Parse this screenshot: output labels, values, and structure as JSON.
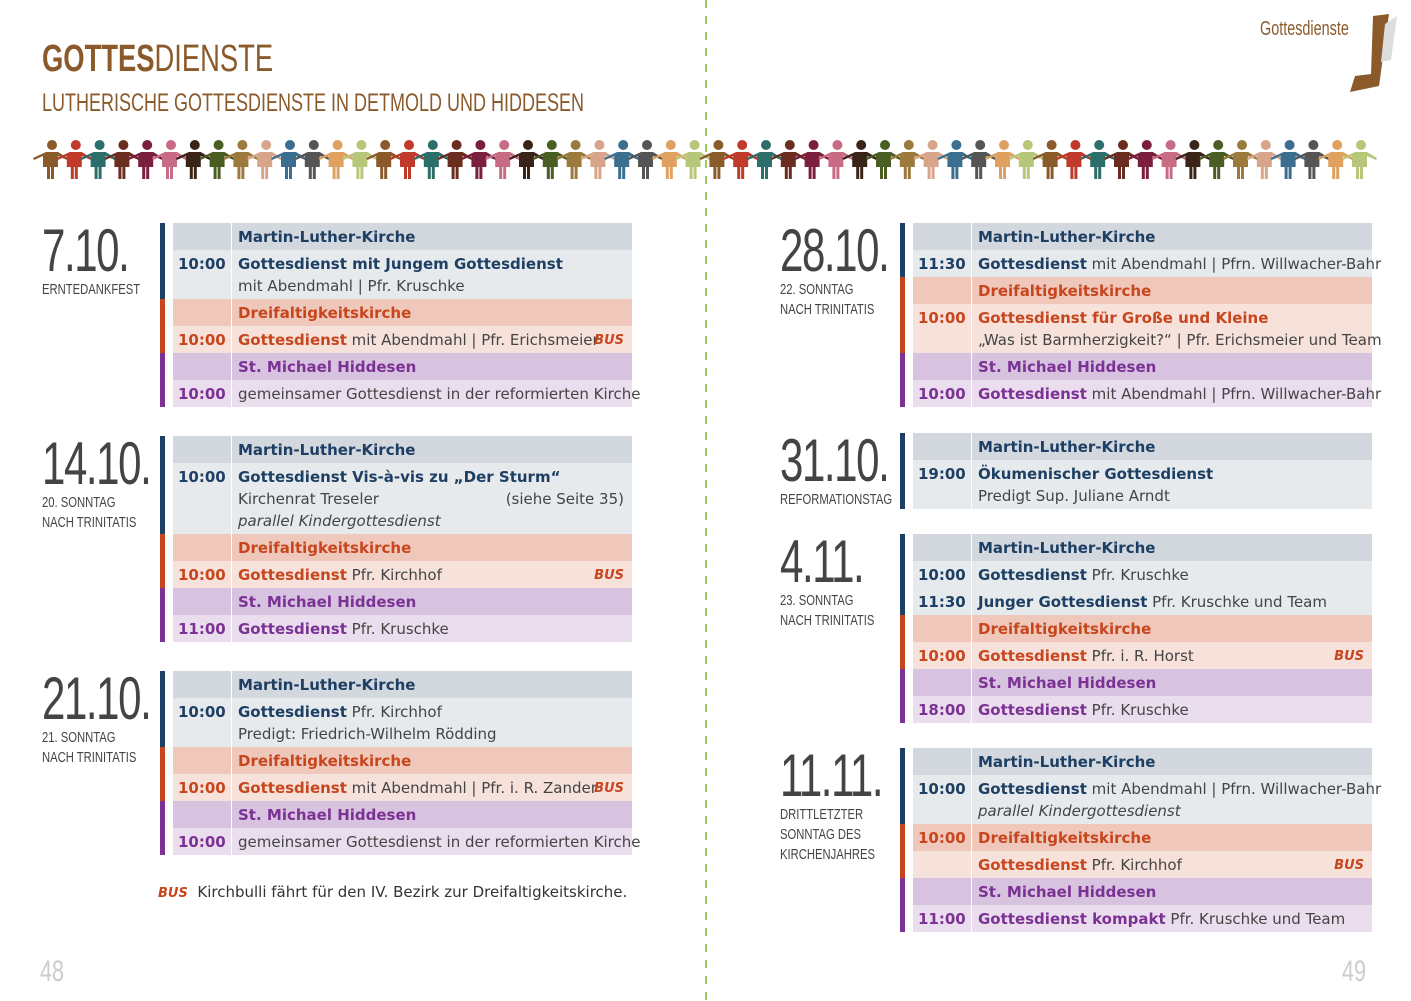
{
  "header": {
    "title_bold": "GOTTES",
    "title_light": "DIENSTE",
    "subtitle": "LUTHERISCHE GOTTESDIENSTE IN DETMOLD UND HIDDESEN",
    "section_tab": "Gottesdienste"
  },
  "days": [
    {
      "date": "7.10.",
      "label": [
        "ERNTEDANKFEST"
      ],
      "churches": [
        {
          "name": "Martin-Luther-Kirche",
          "color": "#1d3f63",
          "services": [
            {
              "time": "10:00",
              "title": "Gottesdienst mit Jungem Gottesdienst",
              "lines": [
                "mit Abendmahl | Pfr. Kruschke"
              ]
            }
          ]
        },
        {
          "name": "Dreifaltigkeitskirche",
          "color": "#c8461d",
          "services": [
            {
              "time": "10:00",
              "title": "Gottesdienst",
              "text": "mit Abendmahl | Pfr. Erichsmeier",
              "bus": "BUS"
            }
          ]
        },
        {
          "name": "St. Michael Hiddesen",
          "color": "#7b3294",
          "services": [
            {
              "time": "10:00",
              "text": "gemeinsamer Gottesdienst in der reformierten Kirche"
            }
          ]
        }
      ]
    },
    {
      "date": "14.10.",
      "label": [
        "20. SONNTAG",
        "NACH TRINITATIS"
      ],
      "churches": [
        {
          "name": "Martin-Luther-Kirche",
          "color": "#1d3f63",
          "services": [
            {
              "time": "10:00",
              "title": "Gottesdienst Vis-à-vis zu „Der Sturm“",
              "lines": [
                "Kirchenrat Treseler"
              ],
              "note": "(siehe Seite 35)",
              "italic": "parallel Kindergottesdienst"
            }
          ]
        },
        {
          "name": "Dreifaltigkeitskirche",
          "color": "#c8461d",
          "services": [
            {
              "time": "10:00",
              "title": "Gottesdienst",
              "text": "Pfr. Kirchhof",
              "bus": "BUS"
            }
          ]
        },
        {
          "name": "St. Michael Hiddesen",
          "color": "#7b3294",
          "services": [
            {
              "time": "11:00",
              "title": "Gottesdienst",
              "text": "Pfr. Kruschke"
            }
          ]
        }
      ]
    },
    {
      "date": "21.10.",
      "label": [
        "21. SONNTAG",
        "NACH TRINITATIS"
      ],
      "churches": [
        {
          "name": "Martin-Luther-Kirche",
          "color": "#1d3f63",
          "services": [
            {
              "time": "10:00",
              "title": "Gottesdienst",
              "text": "Pfr. Kirchhof",
              "lines": [
                "Predigt: Friedrich-Wilhelm Rödding"
              ]
            }
          ]
        },
        {
          "name": "Dreifaltigkeitskirche",
          "color": "#c8461d",
          "services": [
            {
              "time": "10:00",
              "title": "Gottesdienst",
              "text": "mit Abendmahl | Pfr. i. R. Zander",
              "bus": "BUS"
            }
          ]
        },
        {
          "name": "St. Michael Hiddesen",
          "color": "#7b3294",
          "services": [
            {
              "time": "10:00",
              "text": "gemeinsamer Gottesdienst in der reformierten Kirche"
            }
          ]
        }
      ]
    },
    {
      "date": "28.10.",
      "label": [
        "22. SONNTAG",
        "NACH TRINITATIS"
      ],
      "churches": [
        {
          "name": "Martin-Luther-Kirche",
          "color": "#1d3f63",
          "services": [
            {
              "time": "11:30",
              "title": "Gottesdienst",
              "text": "mit Abendmahl | Pfrn. Willwacher-Bahr"
            }
          ]
        },
        {
          "name": "Dreifaltigkeitskirche",
          "color": "#c8461d",
          "services": [
            {
              "time": "10:00",
              "title": "Gottesdienst für Große und Kleine",
              "lines": [
                "„Was ist Barmherzigkeit?“ | Pfr. Erichsmeier und Team"
              ]
            }
          ]
        },
        {
          "name": "St. Michael Hiddesen",
          "color": "#7b3294",
          "services": [
            {
              "time": "10:00",
              "title": "Gottesdienst",
              "text": "mit Abendmahl | Pfrn. Willwacher-Bahr"
            }
          ]
        }
      ]
    },
    {
      "date": "31.10.",
      "label": [
        "REFORMATIONSTAG"
      ],
      "churches": [
        {
          "name": "Martin-Luther-Kirche",
          "color": "#1d3f63",
          "services": [
            {
              "time": "19:00",
              "title": "Ökumenischer Gottesdienst",
              "lines": [
                "Predigt Sup. Juliane Arndt"
              ]
            }
          ]
        }
      ]
    },
    {
      "date": "4.11.",
      "label": [
        "23. SONNTAG",
        "NACH TRINITATIS"
      ],
      "churches": [
        {
          "name": "Martin-Luther-Kirche",
          "color": "#1d3f63",
          "services": [
            {
              "time": "10:00",
              "title": "Gottesdienst",
              "text": "Pfr. Kruschke"
            },
            {
              "time": "11:30",
              "title": "Junger Gottesdienst",
              "text": "Pfr. Kruschke und Team"
            }
          ]
        },
        {
          "name": "Dreifaltigkeitskirche",
          "color": "#c8461d",
          "services": [
            {
              "time": "10:00",
              "title": "Gottesdienst",
              "text": "Pfr. i. R. Horst",
              "bus": "BUS"
            }
          ]
        },
        {
          "name": "St. Michael Hiddesen",
          "color": "#7b3294",
          "services": [
            {
              "time": "18:00",
              "title": "Gottesdienst",
              "text": "Pfr. Kruschke"
            }
          ]
        }
      ]
    },
    {
      "date": "11.11.",
      "label": [
        "DRITTLETZTER",
        "SONNTAG DES",
        "KIRCHENJAHRES"
      ],
      "churches": [
        {
          "name": "Martin-Luther-Kirche",
          "color": "#1d3f63",
          "services": [
            {
              "time": "10:00",
              "title": "Gottesdienst",
              "text": "mit Abendmahl | Pfrn. Willwacher-Bahr",
              "italic": "parallel Kindergottesdienst"
            }
          ]
        },
        {
          "name": "Dreifaltigkeitskirche",
          "color": "#c8461d",
          "time": "10:00",
          "services": [
            {
              "title": "Gottesdienst",
              "text": "Pfr. Kirchhof",
              "bus": "BUS"
            }
          ]
        },
        {
          "name": "St. Michael Hiddesen",
          "color": "#7b3294",
          "services": [
            {
              "time": "11:00",
              "title": "Gottesdienst kompakt",
              "text": "Pfr. Kruschke und Team"
            }
          ]
        }
      ]
    }
  ],
  "footnote": {
    "bus": "BUS",
    "text": "Kirchbulli fährt für den IV. Bezirk zur Dreifaltigkeitskirche."
  },
  "page_numbers": [
    "48",
    "49"
  ]
}
